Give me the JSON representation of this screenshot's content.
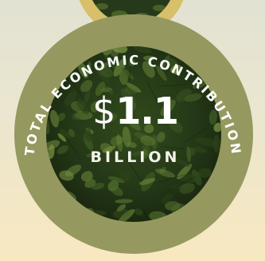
{
  "infographic": {
    "arc_label": "TOTAL ECONOMIC CONTRIBUTION",
    "currency_symbol": "$",
    "amount": "1.1",
    "unit": "BILLION"
  },
  "colors": {
    "outer_ring": "#95995f",
    "top_ring": "#d8bf6a",
    "leaf_dark": "#1f2d12",
    "leaf_mid": "#3f5a24",
    "leaf_light": "#6f8a3c",
    "text": "#ffffff"
  }
}
